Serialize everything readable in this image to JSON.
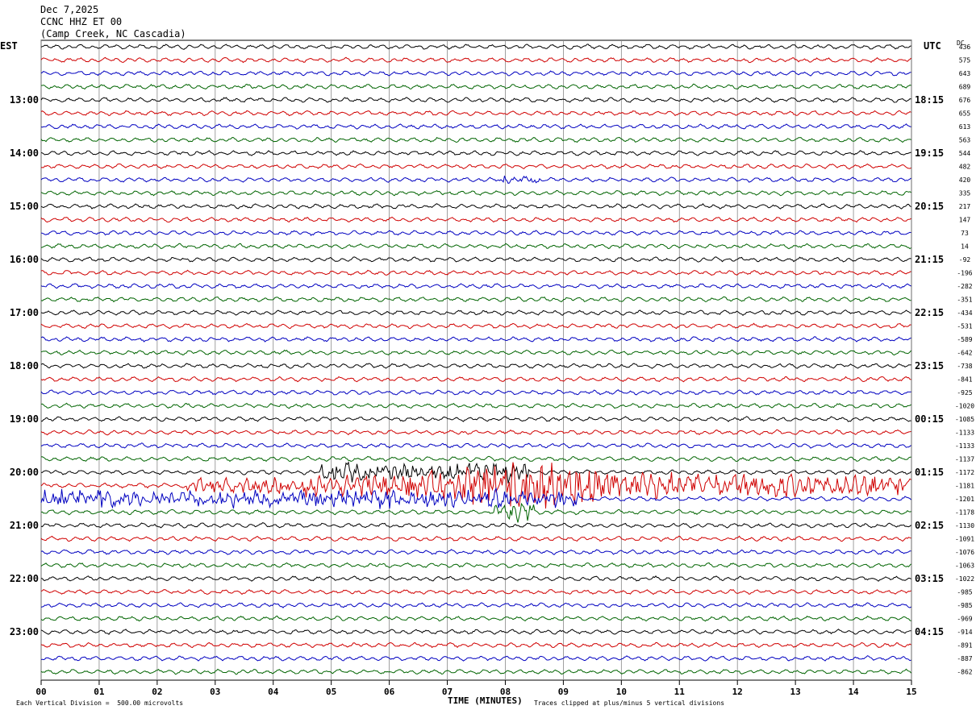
{
  "header": {
    "date": "Dec 7,2025",
    "station": "CCNC HHZ ET 00",
    "location": "(Camp Creek, NC Cascadia)"
  },
  "left_timezone": "EST",
  "right_timezone": "UTC",
  "dc_label": "DC",
  "footer": {
    "scale_note": "Each Vertical Division =  500.00 microvolts",
    "x_title": "TIME (MINUTES)",
    "clip_note": "Traces clipped at plus/minus 5 vertical divisions"
  },
  "chart_data": {
    "type": "line",
    "subtype": "helicorder",
    "x_label": "TIME (MINUTES)",
    "x_ticks": [
      "00",
      "01",
      "02",
      "03",
      "04",
      "05",
      "06",
      "07",
      "08",
      "09",
      "10",
      "11",
      "12",
      "13",
      "14",
      "15"
    ],
    "x_range": [
      0,
      15
    ],
    "trace_minutes": 15,
    "trace_colors": [
      "#000000",
      "#d00000",
      "#0000c0",
      "#006400"
    ],
    "hour_labels_left": [
      "13:00",
      "14:00",
      "15:00",
      "16:00",
      "17:00",
      "18:00",
      "19:00",
      "20:00",
      "21:00",
      "22:00",
      "23:00"
    ],
    "hour_labels_right": [
      "18:15",
      "19:15",
      "20:15",
      "21:15",
      "22:15",
      "23:15",
      "00:15",
      "01:15",
      "02:15",
      "03:15",
      "04:15"
    ],
    "hour_label_first_row": 4,
    "dc_offsets": [
      "436",
      "575",
      "643",
      "689",
      "676",
      "655",
      "613",
      "563",
      "544",
      "482",
      "420",
      "335",
      "217",
      "147",
      "73",
      "14",
      "-92",
      "-196",
      "-282",
      "-351",
      "-434",
      "-531",
      "-589",
      "-642",
      "-738",
      "-841",
      "-925",
      "-1020",
      "-1085",
      "-1133",
      "-1133",
      "-1137",
      "-1172",
      "-1181",
      "-1201",
      "-1178",
      "-1130",
      "-1091",
      "-1076",
      "-1063",
      "-1022",
      "-985",
      "-985",
      "-969",
      "-914",
      "-891",
      "-887",
      "-862"
    ],
    "events": [
      {
        "row": 10,
        "minute_start": 7.9,
        "minute_end": 8.6,
        "amplitude": "small spike"
      },
      {
        "row": 32,
        "minute_start": 4.8,
        "minute_end": 8.4,
        "amplitude": "moderate"
      },
      {
        "row": 33,
        "minute_start": 2.5,
        "minute_end": 15,
        "amplitude": "large",
        "peak_minute": 8.5
      },
      {
        "row": 34,
        "minute_start": 0,
        "minute_end": 9.3,
        "amplitude": "moderate"
      },
      {
        "row": 35,
        "minute_start": 7.8,
        "minute_end": 8.5,
        "amplitude": "moderate"
      }
    ],
    "scale_microvolts_per_division": 500.0,
    "clip_divisions": 5,
    "grid": true
  }
}
